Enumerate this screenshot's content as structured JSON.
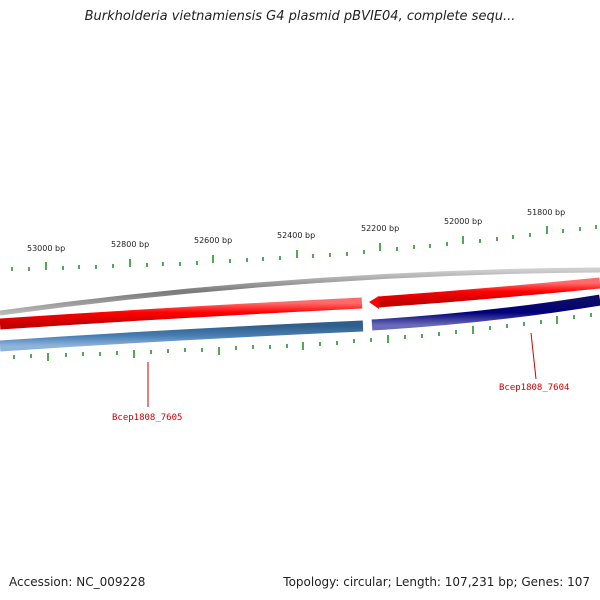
{
  "title": "Burkholderia vietnamiensis G4 plasmid pBVIE04, complete sequ...",
  "accession": "Accession: NC_009228",
  "summary": "Topology: circular; Length: 107,231 bp; Genes: 107",
  "tick_labels": [
    "53000 bp",
    "52800 bp",
    "52600 bp",
    "52400 bp",
    "52200 bp",
    "52000 bp",
    "51800 bp"
  ],
  "genes": [
    {
      "name": "Bcep1808_7605",
      "strand": "-",
      "color": "#4a7fb5"
    },
    {
      "name": "Bcep1808_7604",
      "strand": "-",
      "color": "#000080"
    }
  ],
  "colors": {
    "forward": "#ff0000",
    "backbone": "#888888",
    "tick": "#1a8a1a",
    "label": "#cc0000"
  }
}
